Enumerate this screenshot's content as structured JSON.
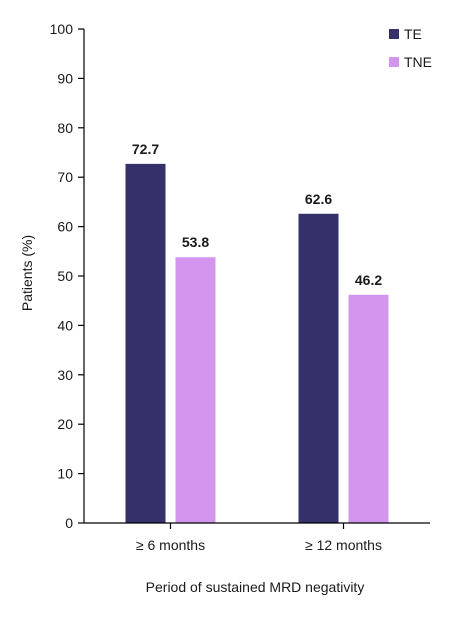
{
  "chart_data": {
    "type": "bar",
    "title": "",
    "xlabel": "Period of sustained MRD negativity",
    "ylabel": "Patients (%)",
    "categories": [
      "≥ 6 months",
      "≥ 12 months"
    ],
    "series": [
      {
        "name": "TE",
        "values": [
          72.7,
          62.6
        ],
        "color": "#33306a"
      },
      {
        "name": "TNE",
        "values": [
          53.8,
          46.2
        ],
        "color": "#d495ef"
      }
    ],
    "ylim": [
      0,
      100
    ],
    "yticks": [
      "0",
      "10",
      "20",
      "30",
      "40",
      "50",
      "60",
      "70",
      "80",
      "90",
      "100"
    ],
    "data_labels": [
      [
        "72.7",
        "62.6"
      ],
      [
        "53.8",
        "46.2"
      ]
    ],
    "grid": false,
    "legend": {
      "position": "top-right"
    }
  }
}
